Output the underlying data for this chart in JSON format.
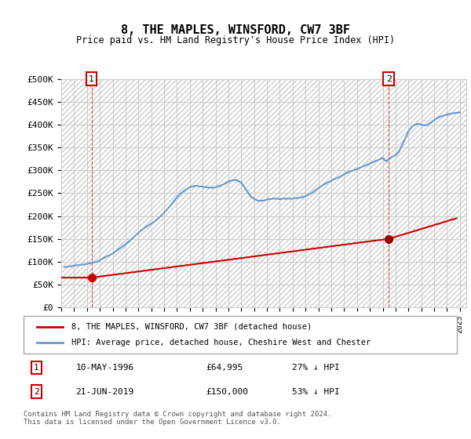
{
  "title": "8, THE MAPLES, WINSFORD, CW7 3BF",
  "subtitle": "Price paid vs. HM Land Registry's House Price Index (HPI)",
  "hpi_color": "#6699cc",
  "price_color": "#cc0000",
  "marker_color": "#cc0000",
  "marker_color2": "#990000",
  "background_color": "#ffffff",
  "grid_color": "#cccccc",
  "hatch_color": "#dddddd",
  "ylim": [
    0,
    500000
  ],
  "yticks": [
    0,
    50000,
    100000,
    150000,
    200000,
    250000,
    300000,
    350000,
    400000,
    450000,
    500000
  ],
  "ytick_labels": [
    "£0",
    "£50K",
    "£100K",
    "£150K",
    "£200K",
    "£250K",
    "£300K",
    "£350K",
    "£400K",
    "£450K",
    "£500K"
  ],
  "xlim_start": 1994.0,
  "xlim_end": 2025.5,
  "xtick_years": [
    1994,
    1995,
    1996,
    1997,
    1998,
    1999,
    2000,
    2001,
    2002,
    2003,
    2004,
    2005,
    2006,
    2007,
    2008,
    2009,
    2010,
    2011,
    2012,
    2013,
    2014,
    2015,
    2016,
    2017,
    2018,
    2019,
    2020,
    2021,
    2022,
    2023,
    2024,
    2025
  ],
  "legend_label_price": "8, THE MAPLES, WINSFORD, CW7 3BF (detached house)",
  "legend_label_hpi": "HPI: Average price, detached house, Cheshire West and Chester",
  "sale1_x": 1996.36,
  "sale1_y": 64995,
  "sale1_label": "1",
  "sale1_date": "10-MAY-1996",
  "sale1_price": "£64,995",
  "sale1_hpi": "27% ↓ HPI",
  "sale2_x": 2019.47,
  "sale2_y": 150000,
  "sale2_label": "2",
  "sale2_date": "21-JUN-2019",
  "sale2_price": "£150,000",
  "sale2_hpi": "53% ↓ HPI",
  "vline1_x": 1996.36,
  "vline2_x": 2019.47,
  "footer": "Contains HM Land Registry data © Crown copyright and database right 2024.\nThis data is licensed under the Open Government Licence v3.0.",
  "hpi_years": [
    1994.25,
    1994.5,
    1994.75,
    1995.0,
    1995.25,
    1995.5,
    1995.75,
    1996.0,
    1996.25,
    1996.5,
    1996.75,
    1997.0,
    1997.25,
    1997.5,
    1997.75,
    1998.0,
    1998.25,
    1998.5,
    1998.75,
    1999.0,
    1999.25,
    1999.5,
    1999.75,
    2000.0,
    2000.25,
    2000.5,
    2000.75,
    2001.0,
    2001.25,
    2001.5,
    2001.75,
    2002.0,
    2002.25,
    2002.5,
    2002.75,
    2003.0,
    2003.25,
    2003.5,
    2003.75,
    2004.0,
    2004.25,
    2004.5,
    2004.75,
    2005.0,
    2005.25,
    2005.5,
    2005.75,
    2006.0,
    2006.25,
    2006.5,
    2006.75,
    2007.0,
    2007.25,
    2007.5,
    2007.75,
    2008.0,
    2008.25,
    2008.5,
    2008.75,
    2009.0,
    2009.25,
    2009.5,
    2009.75,
    2010.0,
    2010.25,
    2010.5,
    2010.75,
    2011.0,
    2011.25,
    2011.5,
    2011.75,
    2012.0,
    2012.25,
    2012.5,
    2012.75,
    2013.0,
    2013.25,
    2013.5,
    2013.75,
    2014.0,
    2014.25,
    2014.5,
    2014.75,
    2015.0,
    2015.25,
    2015.5,
    2015.75,
    2016.0,
    2016.25,
    2016.5,
    2016.75,
    2017.0,
    2017.25,
    2017.5,
    2017.75,
    2018.0,
    2018.25,
    2018.5,
    2018.75,
    2019.0,
    2019.25,
    2019.5,
    2019.75,
    2020.0,
    2020.25,
    2020.5,
    2020.75,
    2021.0,
    2021.25,
    2021.5,
    2021.75,
    2022.0,
    2022.25,
    2022.5,
    2022.75,
    2023.0,
    2023.25,
    2023.5,
    2023.75,
    2024.0,
    2024.25,
    2024.5,
    2024.75,
    2025.0
  ],
  "hpi_values": [
    88000,
    89000,
    90000,
    91500,
    92000,
    93000,
    94000,
    95000,
    96500,
    98000,
    100000,
    103000,
    107000,
    111000,
    114000,
    118000,
    123000,
    128000,
    133000,
    138000,
    144000,
    150000,
    157000,
    163000,
    169000,
    174000,
    179000,
    183000,
    188000,
    194000,
    200000,
    207000,
    215000,
    223000,
    232000,
    241000,
    248000,
    254000,
    259000,
    263000,
    265000,
    266000,
    265000,
    264000,
    263000,
    262000,
    262000,
    263000,
    265000,
    268000,
    271000,
    275000,
    278000,
    279000,
    277000,
    273000,
    263000,
    252000,
    243000,
    237000,
    234000,
    233000,
    234000,
    236000,
    237000,
    238000,
    238000,
    237000,
    238000,
    238000,
    238000,
    238000,
    239000,
    240000,
    241000,
    244000,
    247000,
    251000,
    256000,
    261000,
    266000,
    270000,
    274000,
    277000,
    281000,
    284000,
    287000,
    291000,
    295000,
    298000,
    300000,
    303000,
    306000,
    309000,
    312000,
    315000,
    318000,
    321000,
    324000,
    327000,
    320000,
    325000,
    330000,
    333000,
    340000,
    355000,
    370000,
    385000,
    395000,
    400000,
    402000,
    400000,
    398000,
    400000,
    405000,
    410000,
    415000,
    418000,
    420000,
    422000,
    424000,
    425000,
    426000,
    427000
  ],
  "price_years": [
    1994.0,
    1996.36,
    2019.47,
    2024.75
  ],
  "price_values": [
    64995,
    64995,
    150000,
    195000
  ]
}
